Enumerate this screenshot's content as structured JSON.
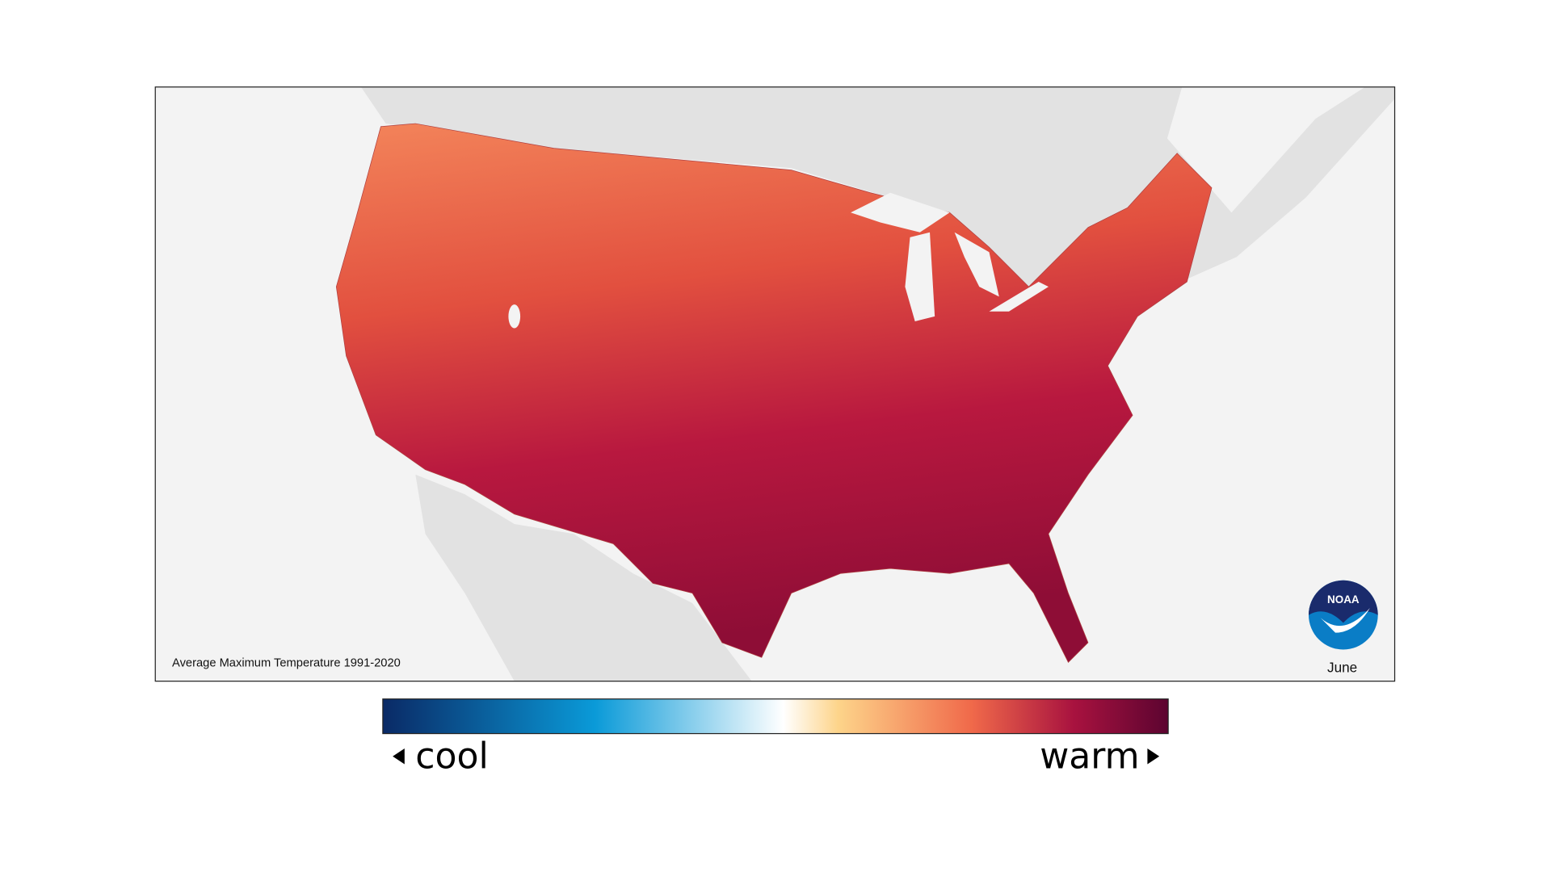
{
  "map": {
    "caption": "Average Maximum Temperature 1991-2020",
    "month": "June",
    "logo": "NOAA"
  },
  "legend": {
    "low": "cool",
    "high": "warm"
  }
}
